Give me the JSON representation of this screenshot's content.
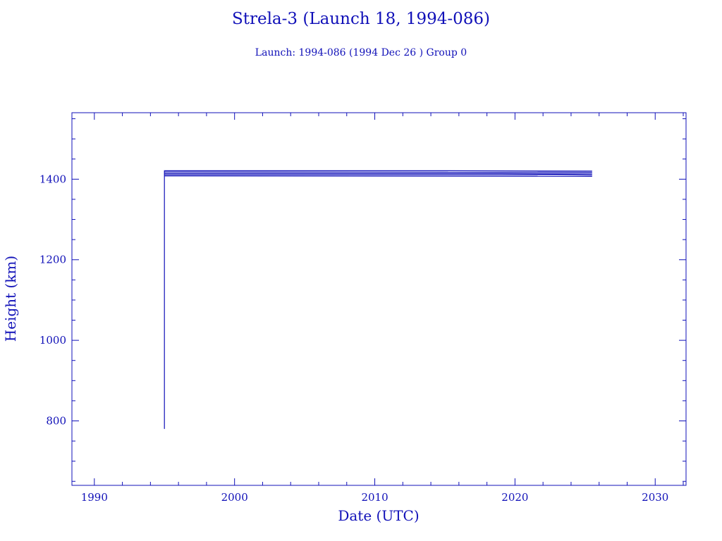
{
  "header": {
    "title": "Strela-3 (Launch 18, 1994-086)",
    "subtitle": "Launch: 1994-086  (1994 Dec 26 )  Group 0"
  },
  "colors": {
    "ink": "#1010b8"
  },
  "chart_data": {
    "type": "line",
    "title": "Strela-3 (Launch 18, 1994-086)",
    "subtitle": "Launch: 1994-086  (1994 Dec 26 )  Group 0",
    "xlabel": "Date (UTC)",
    "ylabel": "Height (km)",
    "xlim": [
      1988.4,
      2032.2
    ],
    "ylim": [
      640,
      1565
    ],
    "xticks": [
      1990,
      2000,
      2010,
      2020,
      2030
    ],
    "yticks": [
      800,
      1000,
      1200,
      1400
    ],
    "grid": false,
    "series": [
      {
        "values": [
          [
            1995.0,
            780
          ],
          [
            1995.0,
            1421
          ],
          [
            2015.0,
            1421
          ],
          [
            2025.5,
            1420
          ]
        ]
      },
      {
        "values": [
          [
            1995.0,
            1418
          ],
          [
            2025.5,
            1417
          ]
        ]
      },
      {
        "values": [
          [
            1995.0,
            1414
          ],
          [
            2019.0,
            1414
          ],
          [
            2025.5,
            1413
          ]
        ]
      },
      {
        "values": [
          [
            1995.0,
            1411
          ],
          [
            1999.0,
            1411
          ],
          [
            2023.0,
            1411
          ],
          [
            2025.5,
            1410
          ]
        ]
      },
      {
        "values": [
          [
            1995.0,
            1408
          ],
          [
            2025.5,
            1407
          ]
        ]
      }
    ]
  }
}
